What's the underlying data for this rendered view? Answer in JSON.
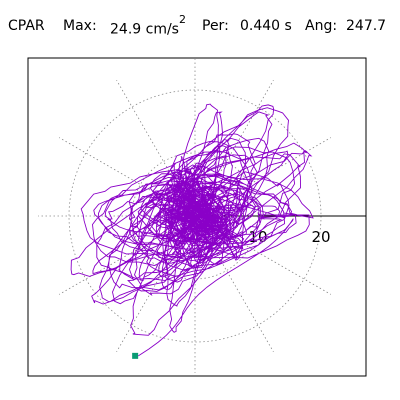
{
  "header": {
    "station": "CPAR",
    "max_label": "Max:",
    "max_value": "24.9",
    "max_unit": "cm/s",
    "max_unit_exp": "2",
    "per_label": "Per:",
    "per_value": "0.440 s",
    "ang_label": "Ang:",
    "ang_value": "247.7"
  },
  "chart_data": {
    "type": "polar-particle-motion",
    "radial_ticks": [
      10,
      20
    ],
    "radial_tick_labels": [
      "10",
      "20"
    ],
    "rmax": 24.9,
    "grid": "dotted",
    "grid_circles": [
      10,
      20
    ],
    "grid_spokes_deg": [
      0,
      30,
      60,
      90,
      120,
      150,
      180,
      210,
      240,
      270,
      300,
      330
    ],
    "trace_color": "#8a00c8",
    "end_marker_color": "#0a9b74",
    "end_point": [
      -9.5,
      -22.2
    ],
    "peak_angle_deg": 247.7,
    "peak_value": 24.9
  }
}
